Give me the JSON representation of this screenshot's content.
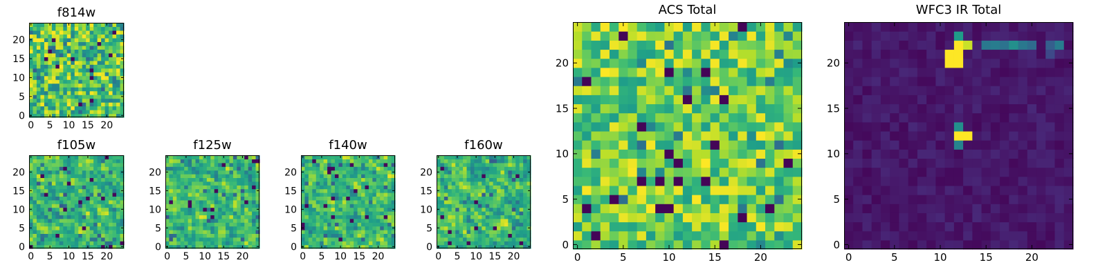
{
  "chart_data": [
    {
      "id": "f814w",
      "type": "heatmap",
      "title": "f814w",
      "colormap": "viridis",
      "grid_size": 25,
      "value_range": [
        0,
        1
      ],
      "xticks": [
        "0",
        "5",
        "10",
        "15",
        "20"
      ],
      "yticks": [
        "0",
        "5",
        "10",
        "15",
        "20"
      ],
      "pattern": "noise",
      "seed": 11,
      "xlim": [
        0,
        24
      ],
      "ylim": [
        0,
        24
      ]
    },
    {
      "id": "f105w",
      "type": "heatmap",
      "title": "f105w",
      "colormap": "viridis",
      "grid_size": 25,
      "value_range": [
        0,
        1
      ],
      "xticks": [
        "0",
        "5",
        "10",
        "15",
        "20"
      ],
      "yticks": [
        "0",
        "5",
        "10",
        "15",
        "20"
      ],
      "pattern": "smooth",
      "seed": 23,
      "xlim": [
        0,
        24
      ],
      "ylim": [
        0,
        24
      ]
    },
    {
      "id": "f125w",
      "type": "heatmap",
      "title": "f125w",
      "colormap": "viridis",
      "grid_size": 25,
      "value_range": [
        0,
        1
      ],
      "xticks": [
        "0",
        "5",
        "10",
        "15",
        "20"
      ],
      "yticks": [
        "0",
        "5",
        "10",
        "15",
        "20"
      ],
      "pattern": "smooth",
      "seed": 37,
      "xlim": [
        0,
        24
      ],
      "ylim": [
        0,
        24
      ]
    },
    {
      "id": "f140w",
      "type": "heatmap",
      "title": "f140w",
      "colormap": "viridis",
      "grid_size": 25,
      "value_range": [
        0,
        1
      ],
      "xticks": [
        "0",
        "5",
        "10",
        "15",
        "20"
      ],
      "yticks": [
        "0",
        "5",
        "10",
        "15",
        "20"
      ],
      "pattern": "smooth",
      "seed": 41,
      "xlim": [
        0,
        24
      ],
      "ylim": [
        0,
        24
      ]
    },
    {
      "id": "f160w",
      "type": "heatmap",
      "title": "f160w",
      "colormap": "viridis",
      "grid_size": 25,
      "value_range": [
        0,
        1
      ],
      "xticks": [
        "0",
        "5",
        "10",
        "15",
        "20"
      ],
      "yticks": [
        "0",
        "5",
        "10",
        "15",
        "20"
      ],
      "pattern": "smooth",
      "seed": 53,
      "xlim": [
        0,
        24
      ],
      "ylim": [
        0,
        24
      ]
    },
    {
      "id": "acs-total",
      "type": "heatmap",
      "title": "ACS Total",
      "colormap": "viridis",
      "grid_size": 25,
      "value_range": [
        0,
        1
      ],
      "xticks": [
        "0",
        "5",
        "10",
        "15",
        "20"
      ],
      "yticks": [
        "0",
        "5",
        "10",
        "15",
        "20"
      ],
      "pattern": "noise-bright",
      "seed": 67,
      "xlim": [
        0,
        24
      ],
      "ylim": [
        0,
        24
      ]
    },
    {
      "id": "wfc3-ir-total",
      "type": "heatmap",
      "title": "WFC3 IR Total",
      "colormap": "viridis",
      "grid_size": 25,
      "value_range": [
        0,
        1
      ],
      "xticks": [
        "0",
        "5",
        "10",
        "15",
        "20"
      ],
      "yticks": [
        "0",
        "5",
        "10",
        "15",
        "20"
      ],
      "pattern": "dark",
      "seed": 79,
      "xlim": [
        0,
        24
      ],
      "ylim": [
        0,
        24
      ],
      "hotspots": [
        {
          "col": 11,
          "row": 20,
          "value": 1.0
        },
        {
          "col": 12,
          "row": 20,
          "value": 1.0
        },
        {
          "col": 11,
          "row": 21,
          "value": 1.0
        },
        {
          "col": 12,
          "row": 21,
          "value": 1.0
        },
        {
          "col": 12,
          "row": 22,
          "value": 1.0
        },
        {
          "col": 13,
          "row": 22,
          "value": 0.92
        },
        {
          "col": 12,
          "row": 23,
          "value": 0.55
        },
        {
          "col": 15,
          "row": 22,
          "value": 0.4
        },
        {
          "col": 16,
          "row": 22,
          "value": 0.42
        },
        {
          "col": 17,
          "row": 22,
          "value": 0.38
        },
        {
          "col": 18,
          "row": 22,
          "value": 0.5
        },
        {
          "col": 19,
          "row": 22,
          "value": 0.4
        },
        {
          "col": 20,
          "row": 22,
          "value": 0.35
        },
        {
          "col": 22,
          "row": 22,
          "value": 0.3
        },
        {
          "col": 23,
          "row": 22,
          "value": 0.42
        },
        {
          "col": 22,
          "row": 21,
          "value": 0.22
        },
        {
          "col": 12,
          "row": 12,
          "value": 1.0
        },
        {
          "col": 13,
          "row": 12,
          "value": 1.0
        },
        {
          "col": 12,
          "row": 13,
          "value": 0.5
        },
        {
          "col": 12,
          "row": 11,
          "value": 0.45
        }
      ]
    }
  ]
}
